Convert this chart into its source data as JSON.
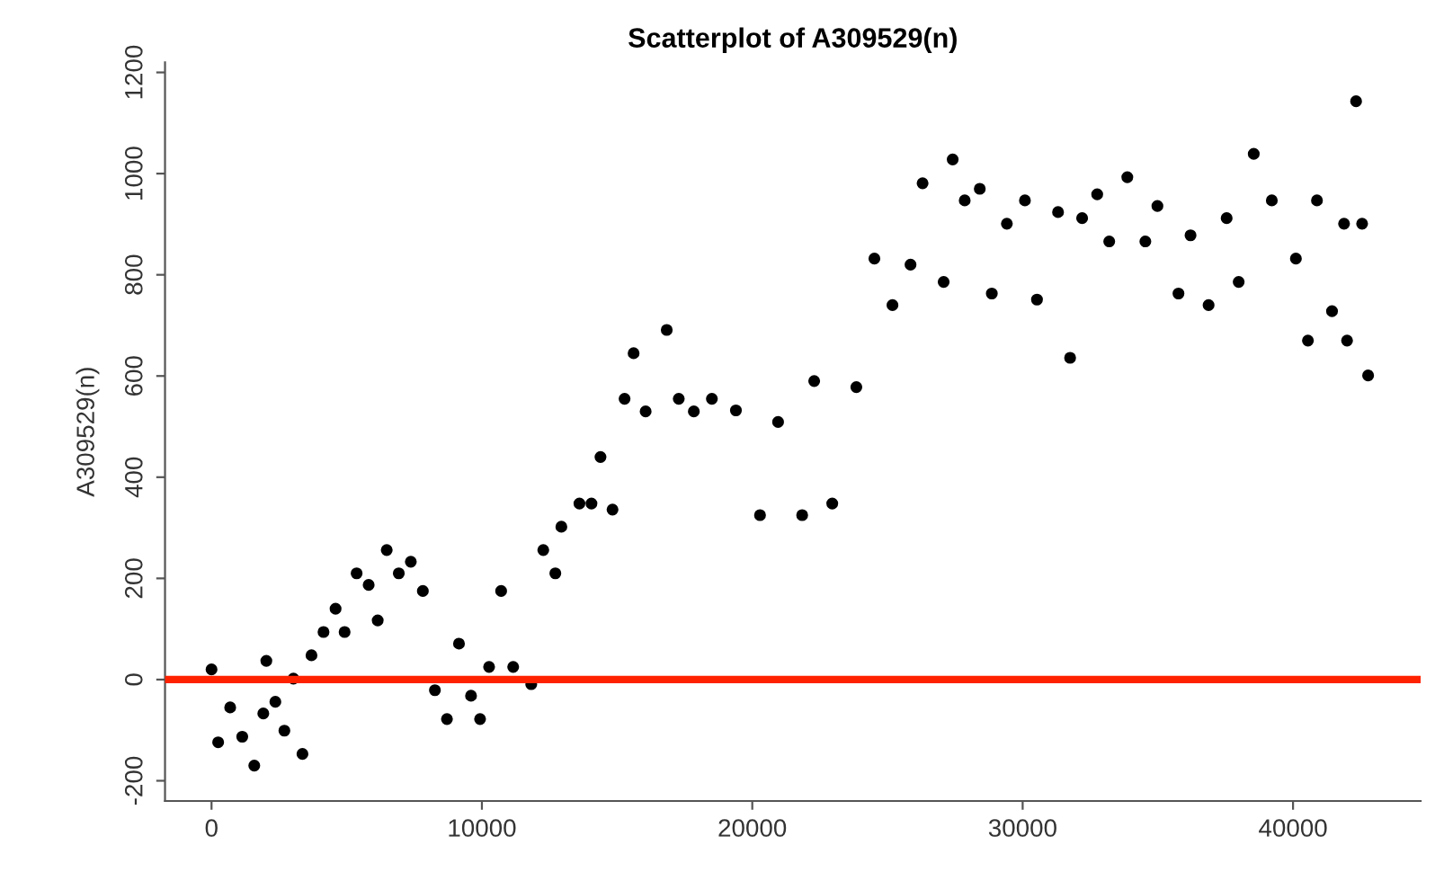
{
  "chart_data": {
    "type": "scatter",
    "title": "Scatterplot of A309529(n)",
    "ylabel": "A309529(n)",
    "x": [
      0,
      245,
      690,
      1136,
      1581,
      1915,
      2027,
      2361,
      2695,
      3029,
      3363,
      3697,
      4142,
      4588,
      4922,
      5367,
      5812,
      6146,
      6480,
      6926,
      7371,
      7816,
      8262,
      8707,
      9152,
      9598,
      9932,
      10266,
      10711,
      11157,
      11825,
      12270,
      12716,
      12939,
      13607,
      14052,
      14386,
      14831,
      15277,
      15611,
      16056,
      16836,
      17281,
      17838,
      18506,
      19395,
      20286,
      20954,
      21845,
      22290,
      22958,
      23849,
      24517,
      25185,
      25853,
      26299,
      27078,
      27412,
      27857,
      28414,
      28859,
      29416,
      30084,
      30530,
      31309,
      31755,
      32200,
      32757,
      33202,
      33871,
      34538,
      34984,
      35763,
      36209,
      36877,
      37545,
      37990,
      38547,
      39215,
      40106,
      40551,
      40885,
      41442,
      41887,
      41998,
      42332,
      42555,
      42777
    ],
    "series": [
      {
        "color": "#000000",
        "values": [
          20,
          -124,
          -55,
          -113,
          -170,
          -67,
          37,
          -44,
          -101,
          2,
          -147,
          48,
          94,
          140,
          94,
          210,
          187,
          117,
          256,
          210,
          233,
          175,
          -21,
          -78,
          71,
          -32,
          -78,
          25,
          175,
          25,
          -9,
          256,
          210,
          302,
          348,
          348,
          440,
          336,
          555,
          645,
          530,
          691,
          555,
          530,
          555,
          532,
          325,
          509,
          325,
          590,
          348,
          578,
          832,
          740,
          820,
          981,
          786,
          1028,
          947,
          970,
          763,
          901,
          947,
          751,
          924,
          636,
          912,
          959,
          866,
          993,
          866,
          936,
          763,
          878,
          740,
          912,
          786,
          1039,
          947,
          832,
          670,
          947,
          728,
          901,
          670,
          1143,
          901,
          601
        ]
      }
    ],
    "xlim": [
      -1720,
      44720
    ],
    "ylim": [
      -240,
      1220
    ],
    "xticks": [
      0,
      10000,
      20000,
      30000,
      40000
    ],
    "yticks": [
      -200,
      0,
      200,
      400,
      600,
      800,
      1000,
      1200
    ],
    "marker": "circle",
    "grid": false,
    "ref_lines": [
      {
        "axis": "y",
        "value": 0,
        "color": "#ff2200"
      }
    ]
  }
}
